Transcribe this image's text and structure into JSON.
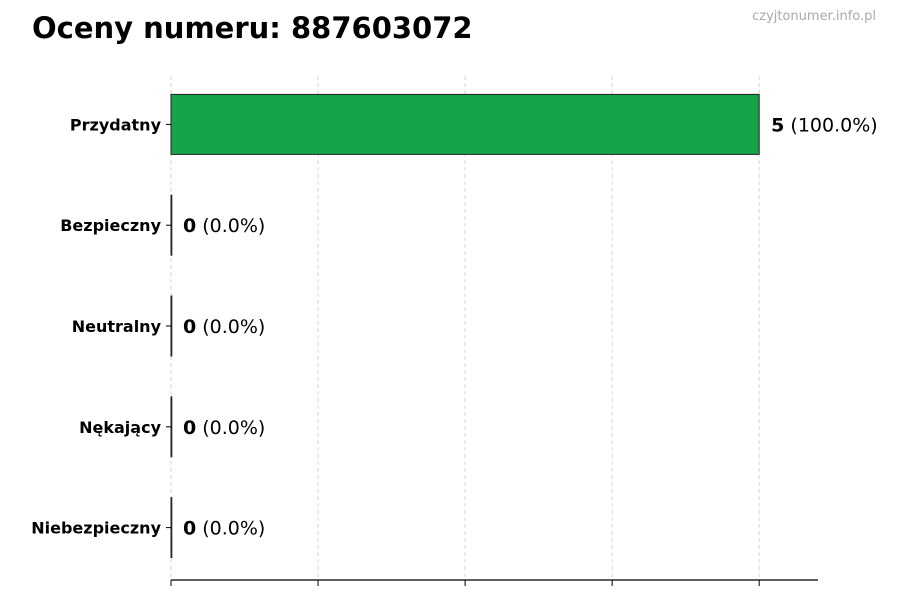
{
  "title": "Oceny numeru: 887603072",
  "watermark": "czyjtonumer.info.pl",
  "chart_data": {
    "type": "bar",
    "orientation": "horizontal",
    "title": "Oceny numeru: 887603072",
    "categories": [
      "Przydatny",
      "Bezpieczny",
      "Neutralny",
      "Nękający",
      "Niebezpieczny"
    ],
    "values": [
      5,
      0,
      0,
      0,
      0
    ],
    "value_labels": [
      "5",
      "0",
      "0",
      "0",
      "0"
    ],
    "percent_labels": [
      "(100.0%)",
      "(0.0%)",
      "(0.0%)",
      "(0.0%)",
      "(0.0%)"
    ],
    "colors": [
      "#16a34a",
      "#16a34a",
      "#16a34a",
      "#16a34a",
      "#16a34a"
    ],
    "xlim": [
      0,
      5.5
    ],
    "xticks": [
      0,
      1.25,
      2.5,
      3.75,
      5
    ],
    "xtick_labels_visible": false,
    "grid": "x dashed",
    "legend": "none"
  }
}
